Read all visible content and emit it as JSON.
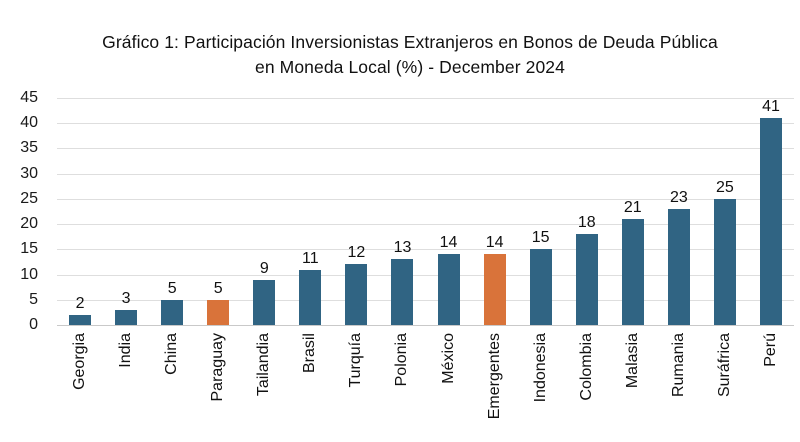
{
  "chart_data": {
    "type": "bar",
    "title": "Gráfico 1: Participación Inversionistas Extranjeros en Bonos de Deuda Pública en Moneda Local (%) - December 2024",
    "categories": [
      "Georgia",
      "India",
      "China",
      "Paraguay",
      "Tailandia",
      "Brasil",
      "Turquía",
      "Polonia",
      "México",
      "Emergentes",
      "Indonesia",
      "Colombia",
      "Malasia",
      "Rumania",
      "Suráfrica",
      "Perú"
    ],
    "values": [
      2,
      3,
      5,
      5,
      9,
      11,
      12,
      13,
      14,
      14,
      15,
      18,
      21,
      23,
      25,
      41
    ],
    "xlabel": "",
    "ylabel": "",
    "ylim": [
      0,
      45
    ],
    "ytick_step": 5,
    "grid": true,
    "legend": "none",
    "data_labels": true,
    "colors": {
      "bar": "#306483",
      "highlight": "#d9733a",
      "gridline": "#dedede",
      "text": "#111111"
    },
    "highlight_indices": [
      3,
      9
    ]
  }
}
